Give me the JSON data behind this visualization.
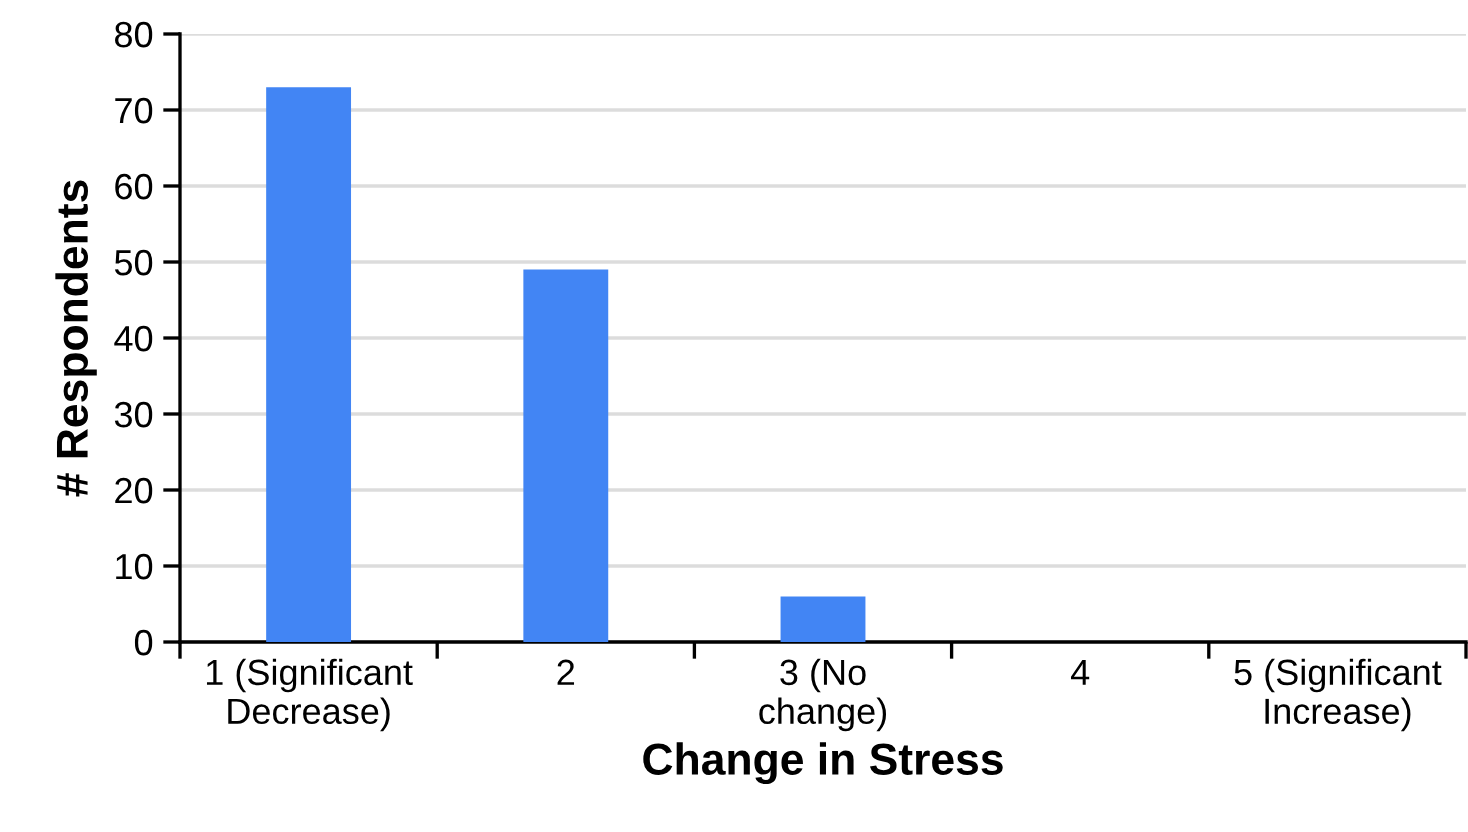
{
  "chart_data": {
    "type": "bar",
    "xlabel": "Change in Stress",
    "ylabel": "# Respondents",
    "categories": [
      "1 (Significant\nDecrease)",
      "2",
      "3 (No\nchange)",
      "4",
      "5 (Significant\nIncrease)"
    ],
    "values": [
      73,
      49,
      6,
      0,
      0
    ],
    "color": "#4285f4",
    "ylim": [
      0,
      80
    ],
    "yticks": [
      0,
      10,
      20,
      30,
      40,
      50,
      60,
      70,
      80
    ],
    "grid": "y",
    "legend": false
  }
}
